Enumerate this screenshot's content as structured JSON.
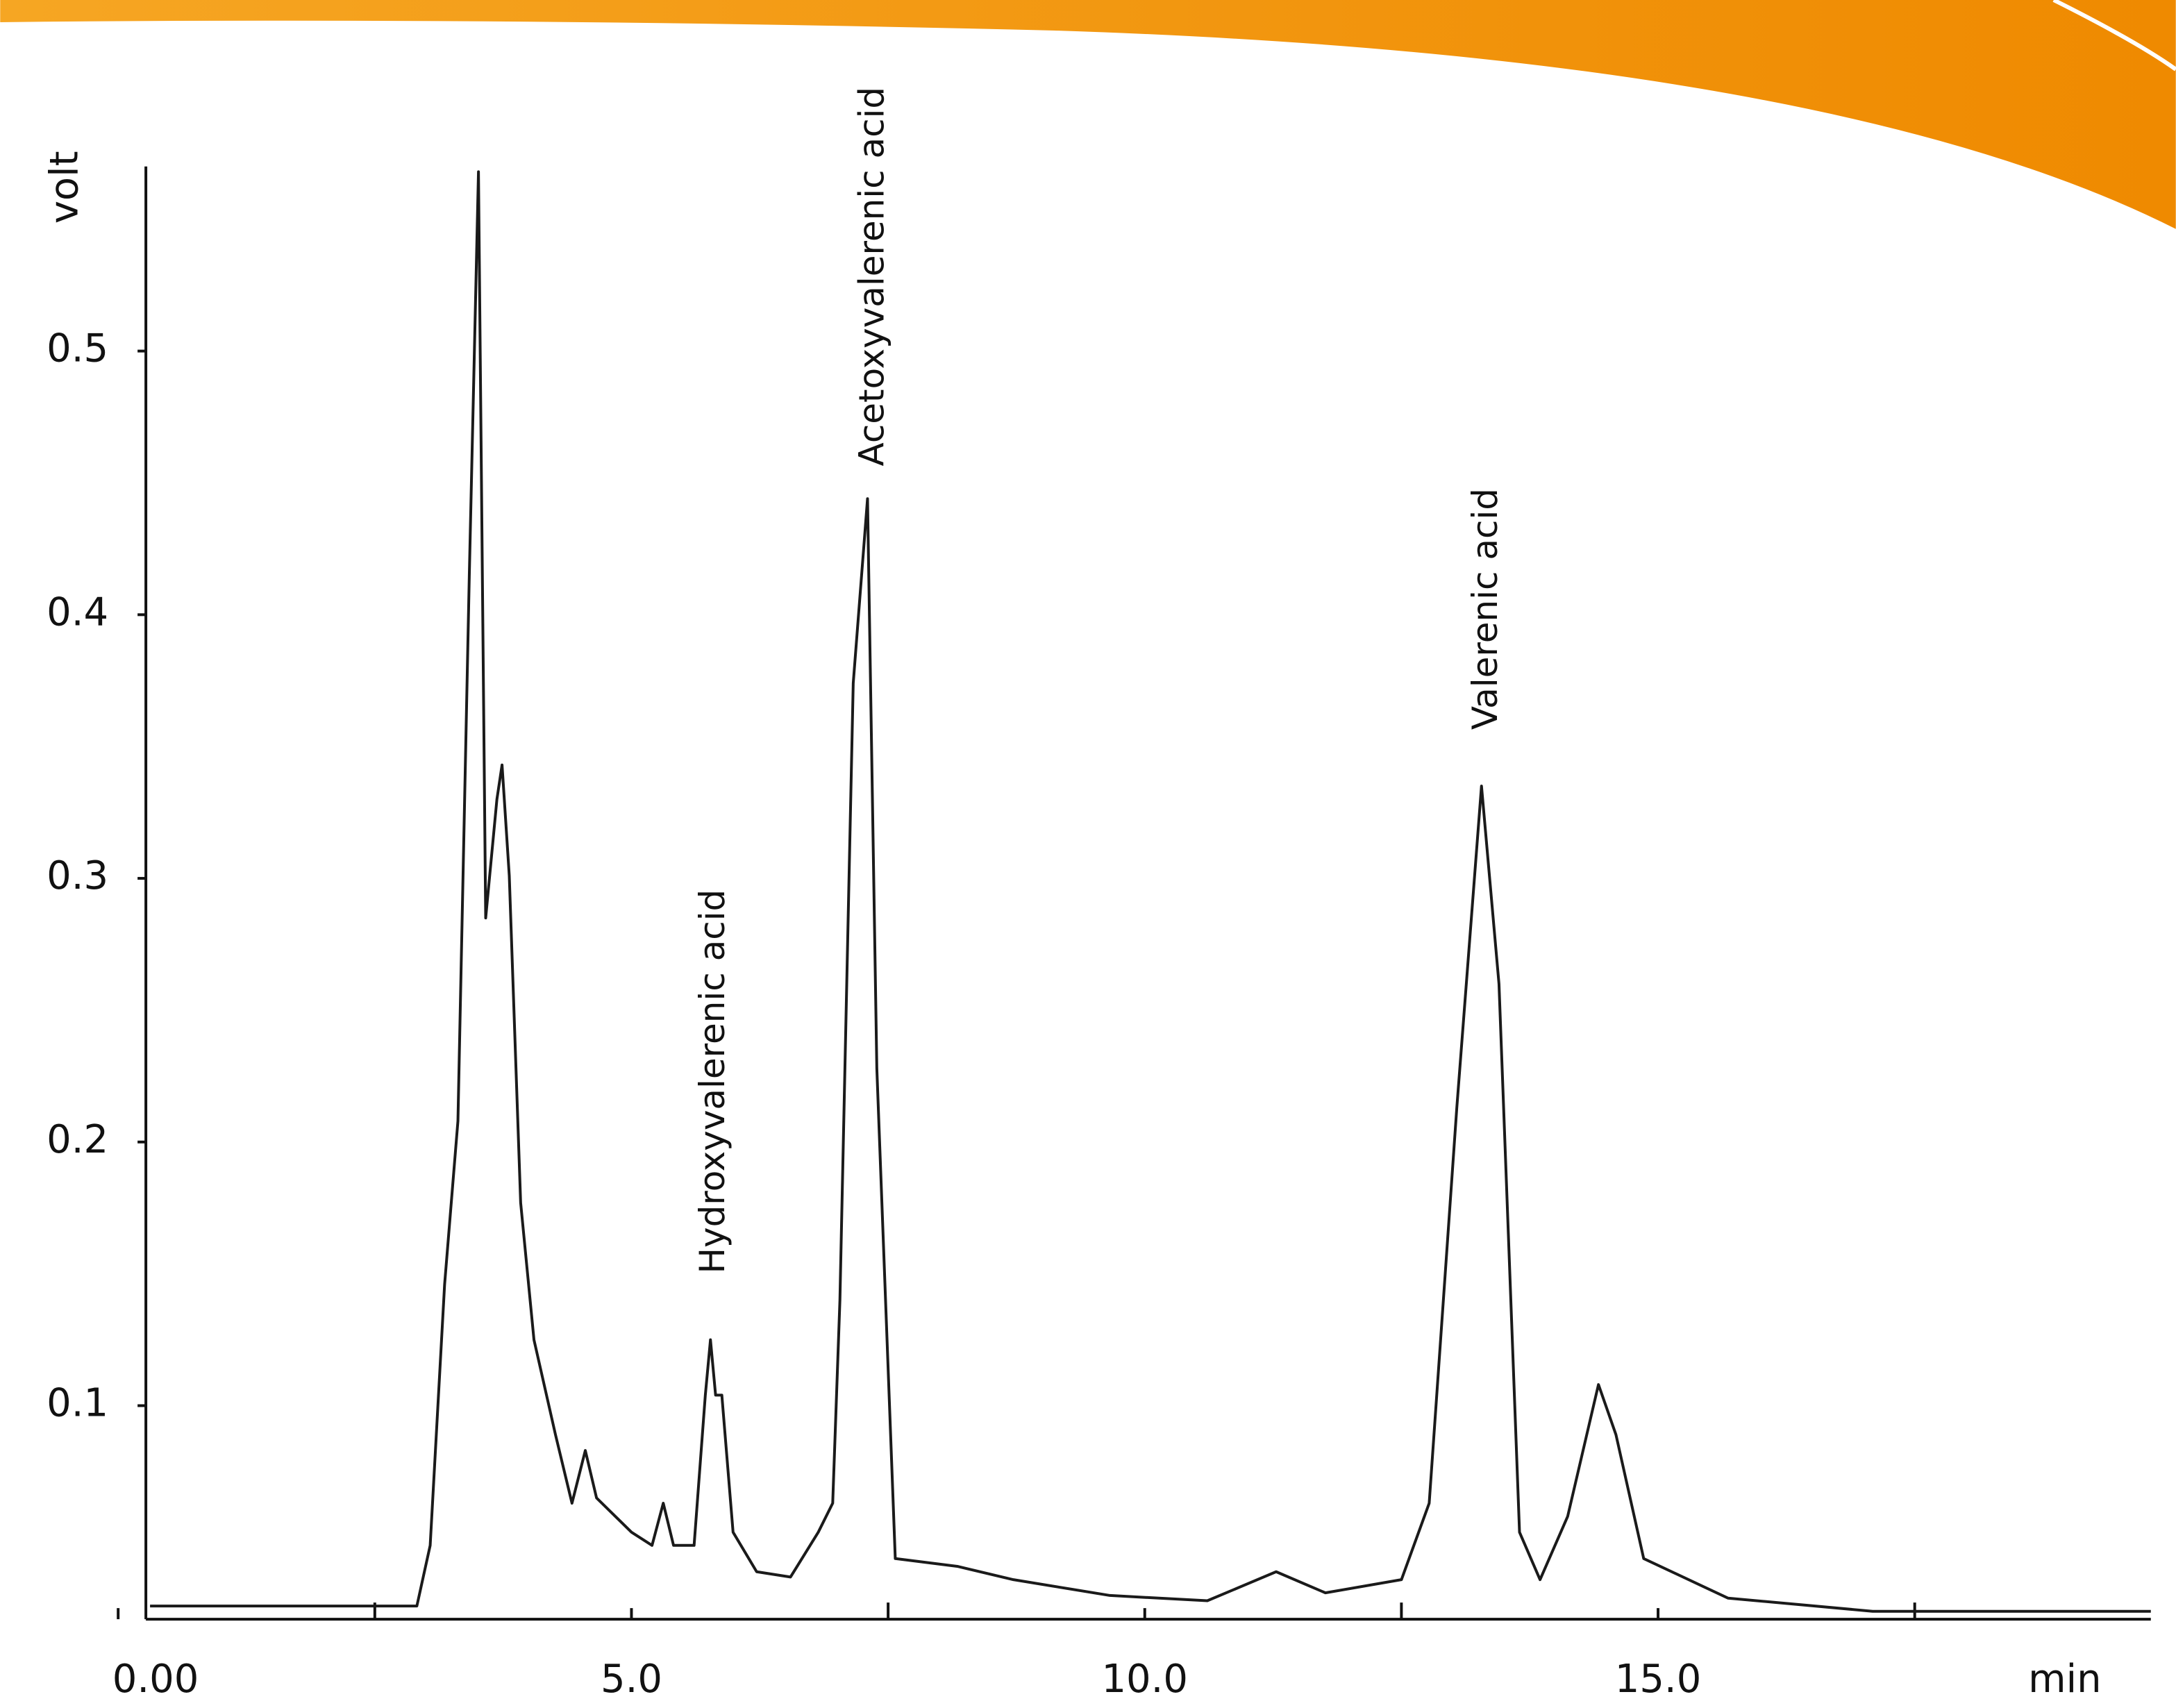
{
  "chart_data": {
    "type": "line",
    "x_label": "min",
    "y_label": "volt",
    "xlim": [
      0.27,
      19.8
    ],
    "ylim": [
      0.019,
      0.57
    ],
    "xticks": [
      {
        "value": 0,
        "label": "0.00"
      },
      {
        "value": 5,
        "label": "5.0"
      },
      {
        "value": 10,
        "label": "10.0"
      },
      {
        "value": 15,
        "label": "15.0"
      }
    ],
    "xminorticks": [
      2.5,
      7.5,
      12.5,
      17.5
    ],
    "yticks": [
      0.1,
      0.2,
      0.3,
      0.4,
      0.5
    ],
    "grid": false,
    "series": [
      {
        "color": "#1a1a1a",
        "x": [
          0.31,
          2.91,
          3.04,
          3.18,
          3.31,
          3.42,
          3.51,
          3.58,
          3.69,
          3.74,
          3.81,
          3.92,
          4.05,
          4.26,
          4.42,
          4.55,
          4.66,
          5.0,
          5.2,
          5.31,
          5.41,
          5.61,
          5.72,
          5.77,
          5.82,
          5.88,
          5.99,
          6.22,
          6.55,
          6.82,
          6.96,
          7.03,
          7.16,
          7.3,
          7.39,
          7.57,
          8.18,
          8.72,
          9.66,
          10.61,
          11.28,
          11.76,
          12.5,
          12.77,
          13.04,
          13.28,
          13.45,
          13.65,
          13.85,
          14.12,
          14.42,
          14.59,
          14.86,
          15.68,
          17.09,
          19.8
        ],
        "values": [
          0.024,
          0.024,
          0.047,
          0.146,
          0.208,
          0.415,
          0.568,
          0.285,
          0.33,
          0.343,
          0.301,
          0.177,
          0.125,
          0.089,
          0.063,
          0.083,
          0.065,
          0.052,
          0.047,
          0.063,
          0.047,
          0.047,
          0.104,
          0.125,
          0.104,
          0.104,
          0.052,
          0.037,
          0.035,
          0.052,
          0.063,
          0.14,
          0.374,
          0.444,
          0.228,
          0.042,
          0.039,
          0.034,
          0.028,
          0.026,
          0.037,
          0.029,
          0.034,
          0.063,
          0.213,
          0.335,
          0.26,
          0.052,
          0.034,
          0.058,
          0.108,
          0.089,
          0.042,
          0.027,
          0.022,
          0.022
        ]
      }
    ],
    "annotations": [
      "Hydroxyvalerenic acid",
      "Acetoxyvalerenic acid",
      "Valerenic acid"
    ]
  }
}
